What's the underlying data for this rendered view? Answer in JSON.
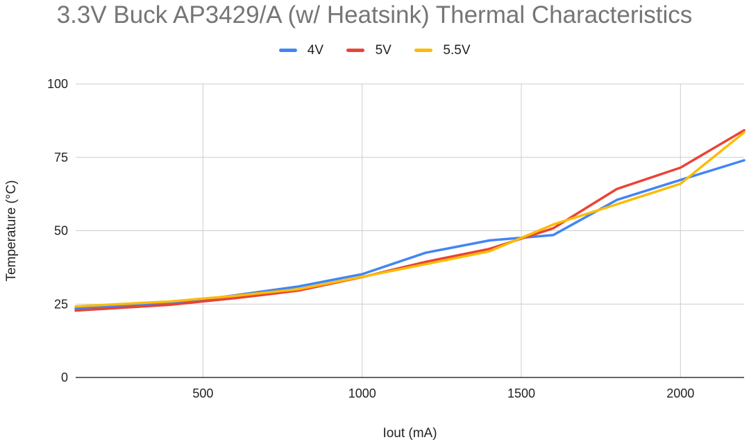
{
  "chart_data": {
    "type": "line",
    "title": "3.3V Buck AP3429/A (w/ Heatsink) Thermal Characteristics",
    "xlabel": "Iout (mA)",
    "ylabel": "Temperature (°C)",
    "xlim": [
      100,
      2200
    ],
    "ylim": [
      0,
      100
    ],
    "xticks": [
      500,
      1000,
      1500,
      2000
    ],
    "yticks": [
      0,
      25,
      50,
      75,
      100
    ],
    "grid": true,
    "legend_position": "top",
    "series": [
      {
        "name": "4V",
        "color": "#4285f4",
        "points": [
          [
            100,
            23.5
          ],
          [
            400,
            25.5
          ],
          [
            500,
            26.6
          ],
          [
            600,
            28
          ],
          [
            800,
            31
          ],
          [
            1000,
            35.2
          ],
          [
            1200,
            42.5
          ],
          [
            1400,
            46.7
          ],
          [
            1600,
            48.5
          ],
          [
            1800,
            60.5
          ],
          [
            2000,
            67.3
          ],
          [
            2200,
            74
          ]
        ]
      },
      {
        "name": "5V",
        "color": "#ea4335",
        "points": [
          [
            100,
            22.8
          ],
          [
            400,
            24.8
          ],
          [
            500,
            25.9
          ],
          [
            600,
            27
          ],
          [
            800,
            29.6
          ],
          [
            1000,
            34.2
          ],
          [
            1200,
            39.4
          ],
          [
            1400,
            43.8
          ],
          [
            1600,
            50.8
          ],
          [
            1800,
            64.2
          ],
          [
            2000,
            71.5
          ],
          [
            2200,
            84.2
          ]
        ]
      },
      {
        "name": "5.5V",
        "color": "#fbbc04",
        "points": [
          [
            100,
            24.2
          ],
          [
            400,
            25.9
          ],
          [
            500,
            26.9
          ],
          [
            600,
            27.8
          ],
          [
            800,
            30.1
          ],
          [
            1000,
            34.3
          ],
          [
            1200,
            38.6
          ],
          [
            1400,
            43
          ],
          [
            1600,
            52.1
          ],
          [
            1800,
            59
          ],
          [
            2000,
            66
          ],
          [
            2200,
            83.5
          ]
        ]
      }
    ]
  }
}
